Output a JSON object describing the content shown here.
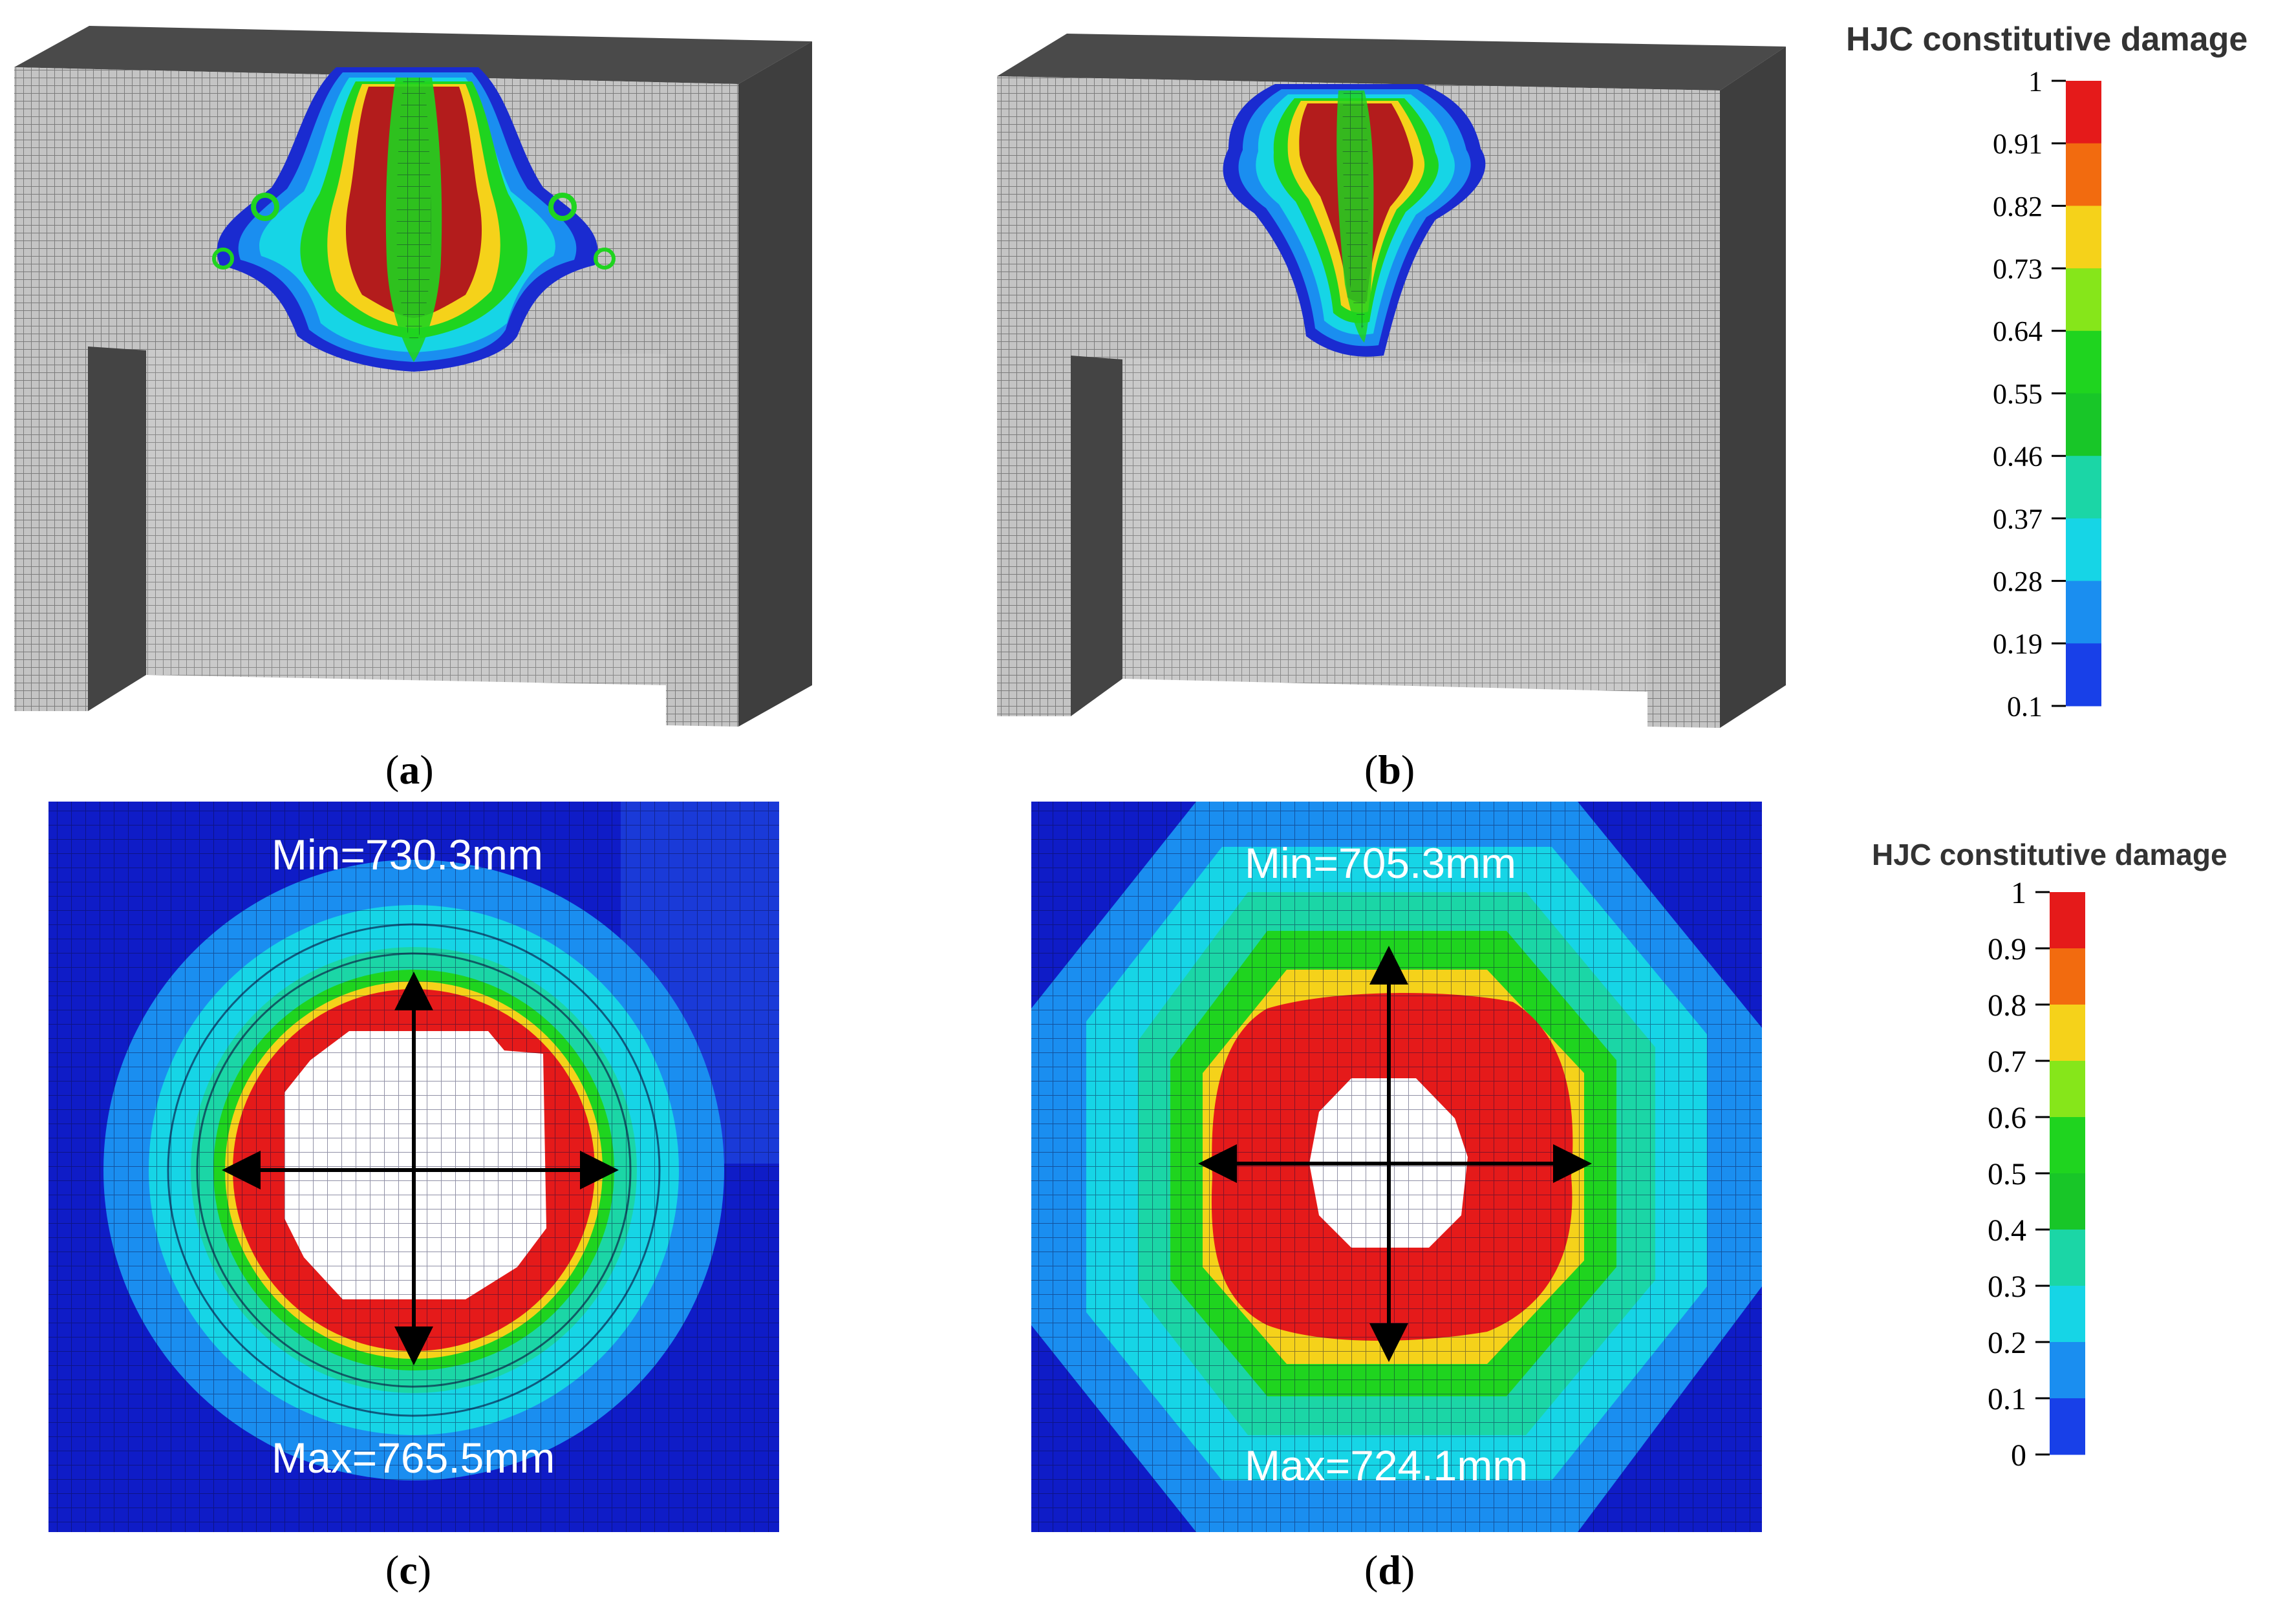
{
  "panels": {
    "a": {
      "label_open": "(",
      "letter": "a",
      "label_close": ")"
    },
    "b": {
      "label_open": "(",
      "letter": "b",
      "label_close": ")"
    },
    "c": {
      "label_open": "(",
      "letter": "c",
      "label_close": ")",
      "min_text": "Min=730.3mm",
      "max_text": "Max=765.5mm"
    },
    "d": {
      "label_open": "(",
      "letter": "d",
      "label_close": ")",
      "min_text": "Min=705.3mm",
      "max_text": "Max=724.1mm"
    }
  },
  "legend_top": {
    "title": "HJC constitutive damage",
    "ticks": [
      "1",
      "0.91",
      "0.82",
      "0.73",
      "0.64",
      "0.55",
      "0.46",
      "0.37",
      "0.28",
      "0.19",
      "0.1"
    ],
    "colors": [
      "#e51a1a",
      "#f26b0f",
      "#f5d21a",
      "#86e61a",
      "#1fd41f",
      "#18c628",
      "#1bd6a6",
      "#16d5e6",
      "#1a8ef0",
      "#1840e8"
    ]
  },
  "legend_bottom": {
    "title": "HJC constitutive damage",
    "ticks": [
      "1",
      "0.9",
      "0.8",
      "0.7",
      "0.6",
      "0.5",
      "0.4",
      "0.3",
      "0.2",
      "0.1",
      "0"
    ],
    "colors": [
      "#e51a1a",
      "#f26b0f",
      "#f5d21a",
      "#86e61a",
      "#1fd41f",
      "#18c628",
      "#1bd6a6",
      "#16d5e6",
      "#1a8ef0",
      "#1840e8"
    ]
  },
  "colors": {
    "mesh_face": "#b4b4b4",
    "mesh_side": "#4a4a4a",
    "background_blue": "#0f1cc7",
    "damage_red": "#e51a1a"
  }
}
